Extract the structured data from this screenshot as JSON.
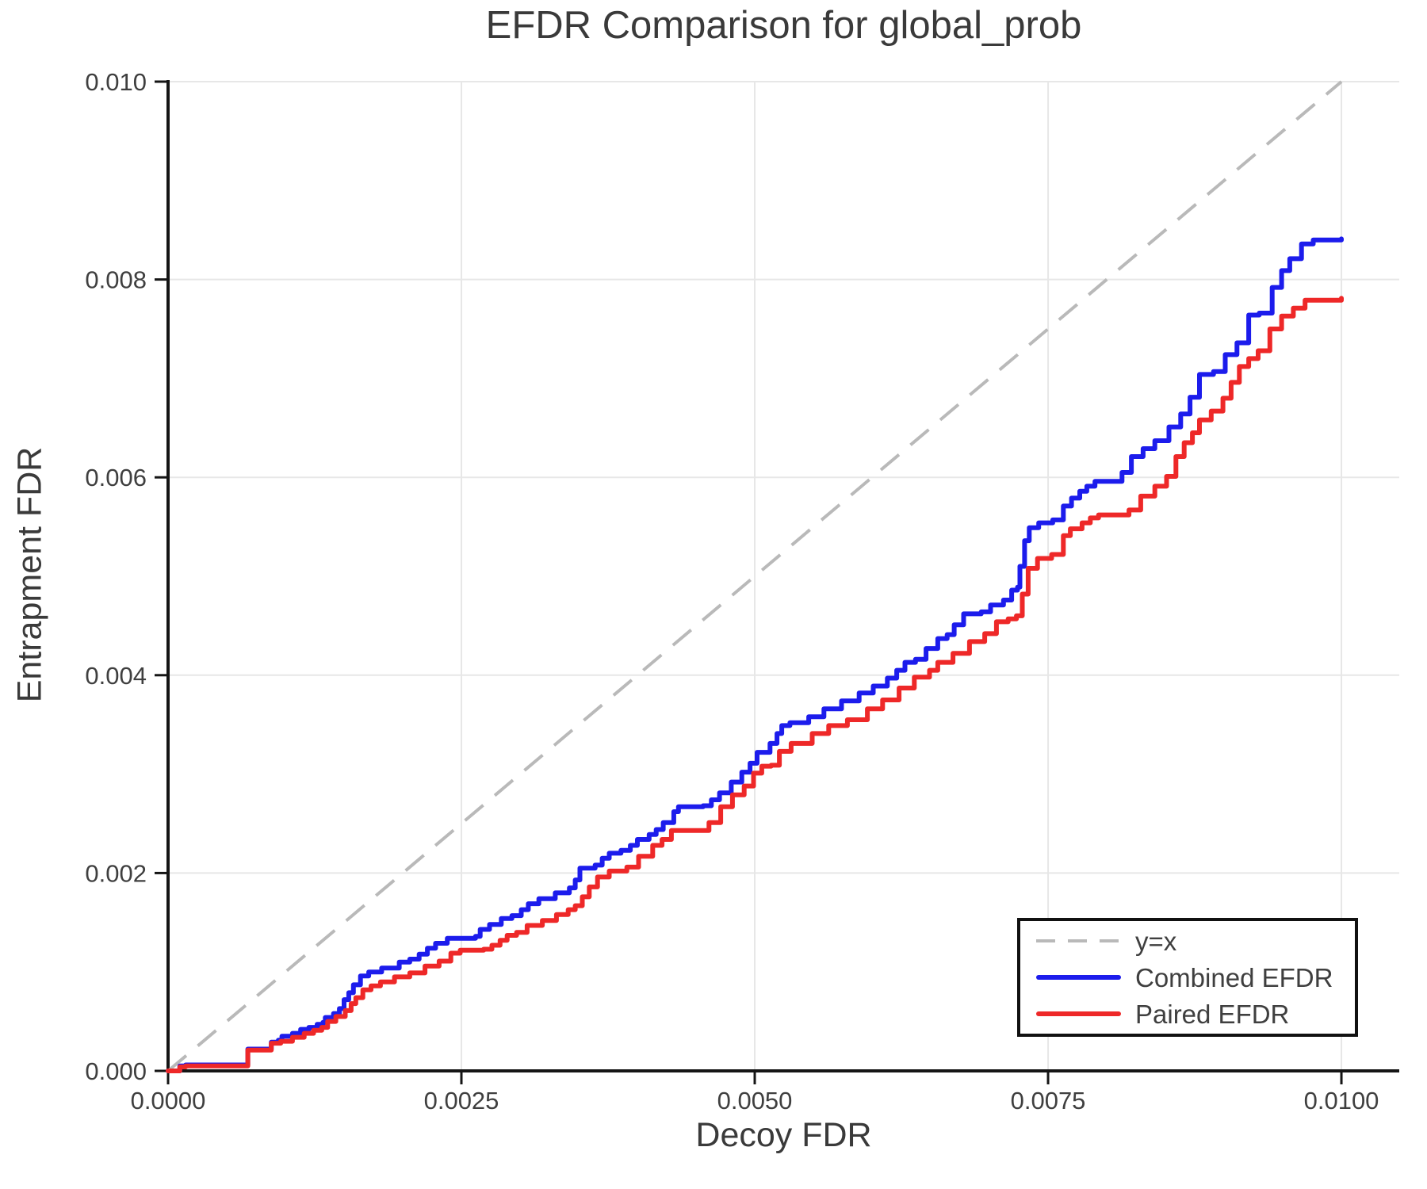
{
  "figure": {
    "title": "EFDR Comparison for global_prob"
  },
  "chart_data": {
    "type": "line",
    "title": "EFDR Comparison for global_prob",
    "xlabel": "Decoy FDR",
    "ylabel": "Entrapment FDR",
    "xlim": [
      0,
      0.0105
    ],
    "ylim": [
      0,
      0.01
    ],
    "grid": true,
    "x_ticks": {
      "values": [
        0.0,
        0.0025,
        0.005,
        0.0075,
        0.01
      ],
      "labels": [
        "0.0000",
        "0.0025",
        "0.0050",
        "0.0075",
        "0.0100"
      ]
    },
    "y_ticks": {
      "values": [
        0.0,
        0.002,
        0.004,
        0.006,
        0.008,
        0.01
      ],
      "labels": [
        "0.000",
        "0.002",
        "0.004",
        "0.006",
        "0.008",
        "0.010"
      ]
    },
    "colors": {
      "reference": "#b9b9b9",
      "combined": "#1c1cec",
      "paired": "#ee2828",
      "grid": "#e7e7e7",
      "text": "#3f3f3f",
      "spine": "#151515"
    },
    "legend": {
      "position": "lower right",
      "entries": [
        {
          "label": "y=x",
          "color": "#b9b9b9",
          "style": "dashed"
        },
        {
          "label": "Combined EFDR",
          "color": "#1c1cec",
          "style": "solid"
        },
        {
          "label": "Paired EFDR",
          "color": "#ee2828",
          "style": "solid"
        }
      ]
    },
    "reference_line": {
      "name": "y=x",
      "points": [
        [
          0.0,
          0.0
        ],
        [
          0.01,
          0.01
        ]
      ]
    },
    "series": [
      {
        "name": "Combined EFDR",
        "color": "#1c1cec",
        "interpolation": "step-after",
        "points": [
          [
            0.0,
            0.0
          ],
          [
            0.0001,
            5e-05
          ],
          [
            0.00015,
            6e-05
          ],
          [
            0.00066,
            6e-05
          ],
          [
            0.00068,
            0.00022
          ],
          [
            0.00086,
            0.00022
          ],
          [
            0.00088,
            0.00029
          ],
          [
            0.00094,
            0.00031
          ],
          [
            0.00097,
            0.00035
          ],
          [
            0.00106,
            0.00038
          ],
          [
            0.00113,
            0.00042
          ],
          [
            0.0012,
            0.00044
          ],
          [
            0.00127,
            0.00047
          ],
          [
            0.00132,
            0.00049
          ],
          [
            0.00134,
            0.00054
          ],
          [
            0.00141,
            0.00058
          ],
          [
            0.00146,
            0.00063
          ],
          [
            0.0015,
            0.00072
          ],
          [
            0.00154,
            0.00079
          ],
          [
            0.00158,
            0.00087
          ],
          [
            0.00164,
            0.00096
          ],
          [
            0.00171,
            0.001
          ],
          [
            0.00182,
            0.00104
          ],
          [
            0.00197,
            0.0011
          ],
          [
            0.00206,
            0.00113
          ],
          [
            0.00214,
            0.00118
          ],
          [
            0.00221,
            0.00124
          ],
          [
            0.00228,
            0.00129
          ],
          [
            0.00238,
            0.00134
          ],
          [
            0.00262,
            0.00136
          ],
          [
            0.00266,
            0.00143
          ],
          [
            0.00274,
            0.00148
          ],
          [
            0.00284,
            0.00154
          ],
          [
            0.00293,
            0.00157
          ],
          [
            0.00301,
            0.00163
          ],
          [
            0.00307,
            0.00169
          ],
          [
            0.00316,
            0.00174
          ],
          [
            0.0033,
            0.0018
          ],
          [
            0.00342,
            0.00185
          ],
          [
            0.00347,
            0.00193
          ],
          [
            0.00351,
            0.00205
          ],
          [
            0.00364,
            0.00208
          ],
          [
            0.0037,
            0.00215
          ],
          [
            0.00376,
            0.0022
          ],
          [
            0.00386,
            0.00223
          ],
          [
            0.00394,
            0.00228
          ],
          [
            0.004,
            0.00234
          ],
          [
            0.0041,
            0.00239
          ],
          [
            0.00416,
            0.00244
          ],
          [
            0.00422,
            0.00251
          ],
          [
            0.00431,
            0.00262
          ],
          [
            0.00435,
            0.00267
          ],
          [
            0.00456,
            0.00268
          ],
          [
            0.00463,
            0.00274
          ],
          [
            0.0047,
            0.00281
          ],
          [
            0.0048,
            0.00292
          ],
          [
            0.00489,
            0.00302
          ],
          [
            0.00496,
            0.00311
          ],
          [
            0.00502,
            0.00322
          ],
          [
            0.00513,
            0.00331
          ],
          [
            0.00519,
            0.00341
          ],
          [
            0.00523,
            0.00349
          ],
          [
            0.0053,
            0.00352
          ],
          [
            0.00546,
            0.00358
          ],
          [
            0.00559,
            0.00366
          ],
          [
            0.00574,
            0.00374
          ],
          [
            0.00589,
            0.00382
          ],
          [
            0.00601,
            0.00389
          ],
          [
            0.00613,
            0.00397
          ],
          [
            0.00621,
            0.00405
          ],
          [
            0.00628,
            0.00413
          ],
          [
            0.00637,
            0.00416
          ],
          [
            0.00646,
            0.00427
          ],
          [
            0.00656,
            0.00437
          ],
          [
            0.00664,
            0.00441
          ],
          [
            0.0067,
            0.00451
          ],
          [
            0.00678,
            0.00462
          ],
          [
            0.00693,
            0.00464
          ],
          [
            0.00701,
            0.00471
          ],
          [
            0.00712,
            0.00476
          ],
          [
            0.00719,
            0.00486
          ],
          [
            0.00724,
            0.00489
          ],
          [
            0.00726,
            0.0051
          ],
          [
            0.0073,
            0.00536
          ],
          [
            0.00734,
            0.00549
          ],
          [
            0.00742,
            0.00554
          ],
          [
            0.00754,
            0.00557
          ],
          [
            0.00763,
            0.00571
          ],
          [
            0.0077,
            0.00579
          ],
          [
            0.00777,
            0.00586
          ],
          [
            0.00783,
            0.00591
          ],
          [
            0.0079,
            0.00596
          ],
          [
            0.00806,
            0.00596
          ],
          [
            0.00813,
            0.00605
          ],
          [
            0.00821,
            0.00621
          ],
          [
            0.00831,
            0.00629
          ],
          [
            0.00841,
            0.00637
          ],
          [
            0.00853,
            0.00651
          ],
          [
            0.00863,
            0.00664
          ],
          [
            0.00871,
            0.00681
          ],
          [
            0.00879,
            0.00704
          ],
          [
            0.00891,
            0.00707
          ],
          [
            0.00901,
            0.00724
          ],
          [
            0.00911,
            0.00736
          ],
          [
            0.00921,
            0.00764
          ],
          [
            0.0093,
            0.00766
          ],
          [
            0.00941,
            0.00792
          ],
          [
            0.00949,
            0.00809
          ],
          [
            0.00956,
            0.00821
          ],
          [
            0.00966,
            0.00836
          ],
          [
            0.00976,
            0.0084
          ],
          [
            0.01,
            0.00841
          ]
        ]
      },
      {
        "name": "Paired EFDR",
        "color": "#ee2828",
        "interpolation": "step-after",
        "points": [
          [
            0.0,
            0.0
          ],
          [
            0.0001,
            4e-05
          ],
          [
            0.00015,
            5e-05
          ],
          [
            0.00066,
            5e-05
          ],
          [
            0.00068,
            0.00021
          ],
          [
            0.00086,
            0.00021
          ],
          [
            0.00088,
            0.00028
          ],
          [
            0.00096,
            0.0003
          ],
          [
            0.00106,
            0.00034
          ],
          [
            0.00116,
            0.00038
          ],
          [
            0.00124,
            0.00041
          ],
          [
            0.00131,
            0.00044
          ],
          [
            0.00136,
            0.0005
          ],
          [
            0.00143,
            0.00055
          ],
          [
            0.00151,
            0.00061
          ],
          [
            0.00156,
            0.00068
          ],
          [
            0.0016,
            0.00074
          ],
          [
            0.00166,
            0.00082
          ],
          [
            0.00173,
            0.00086
          ],
          [
            0.00181,
            0.0009
          ],
          [
            0.00193,
            0.00095
          ],
          [
            0.00206,
            0.00099
          ],
          [
            0.00219,
            0.00106
          ],
          [
            0.00231,
            0.00111
          ],
          [
            0.00241,
            0.00119
          ],
          [
            0.00249,
            0.00122
          ],
          [
            0.00269,
            0.00123
          ],
          [
            0.00276,
            0.00127
          ],
          [
            0.00283,
            0.00132
          ],
          [
            0.00289,
            0.00137
          ],
          [
            0.00297,
            0.0014
          ],
          [
            0.00306,
            0.00147
          ],
          [
            0.00319,
            0.00152
          ],
          [
            0.00331,
            0.00158
          ],
          [
            0.00341,
            0.00163
          ],
          [
            0.00347,
            0.00167
          ],
          [
            0.00353,
            0.00176
          ],
          [
            0.00359,
            0.00186
          ],
          [
            0.00366,
            0.00196
          ],
          [
            0.00376,
            0.00202
          ],
          [
            0.00391,
            0.00206
          ],
          [
            0.00401,
            0.00217
          ],
          [
            0.00413,
            0.00228
          ],
          [
            0.00421,
            0.00234
          ],
          [
            0.00429,
            0.00243
          ],
          [
            0.00452,
            0.00243
          ],
          [
            0.00461,
            0.00251
          ],
          [
            0.00471,
            0.00267
          ],
          [
            0.00481,
            0.00279
          ],
          [
            0.00491,
            0.00288
          ],
          [
            0.00499,
            0.00301
          ],
          [
            0.00506,
            0.00308
          ],
          [
            0.00514,
            0.00309
          ],
          [
            0.00521,
            0.00323
          ],
          [
            0.00531,
            0.00331
          ],
          [
            0.00549,
            0.00341
          ],
          [
            0.00563,
            0.00349
          ],
          [
            0.00579,
            0.00355
          ],
          [
            0.00596,
            0.00366
          ],
          [
            0.00609,
            0.00375
          ],
          [
            0.00623,
            0.00387
          ],
          [
            0.00636,
            0.00398
          ],
          [
            0.00649,
            0.00405
          ],
          [
            0.00656,
            0.00413
          ],
          [
            0.00669,
            0.00422
          ],
          [
            0.00683,
            0.00434
          ],
          [
            0.00696,
            0.00442
          ],
          [
            0.00706,
            0.00454
          ],
          [
            0.00716,
            0.00457
          ],
          [
            0.00723,
            0.0046
          ],
          [
            0.00728,
            0.00482
          ],
          [
            0.00733,
            0.00508
          ],
          [
            0.00741,
            0.00518
          ],
          [
            0.00753,
            0.00522
          ],
          [
            0.00763,
            0.00541
          ],
          [
            0.00769,
            0.00548
          ],
          [
            0.00779,
            0.00554
          ],
          [
            0.00786,
            0.00559
          ],
          [
            0.00793,
            0.00562
          ],
          [
            0.00813,
            0.00562
          ],
          [
            0.00819,
            0.00567
          ],
          [
            0.00829,
            0.00581
          ],
          [
            0.00841,
            0.00591
          ],
          [
            0.00851,
            0.00601
          ],
          [
            0.00859,
            0.00621
          ],
          [
            0.00866,
            0.00635
          ],
          [
            0.00873,
            0.00645
          ],
          [
            0.00879,
            0.00658
          ],
          [
            0.00889,
            0.00667
          ],
          [
            0.00899,
            0.0068
          ],
          [
            0.00906,
            0.00696
          ],
          [
            0.00913,
            0.00712
          ],
          [
            0.00921,
            0.0072
          ],
          [
            0.00929,
            0.00728
          ],
          [
            0.00939,
            0.0075
          ],
          [
            0.00949,
            0.00763
          ],
          [
            0.00959,
            0.00771
          ],
          [
            0.00969,
            0.00779
          ],
          [
            0.01,
            0.00781
          ]
        ]
      }
    ]
  }
}
